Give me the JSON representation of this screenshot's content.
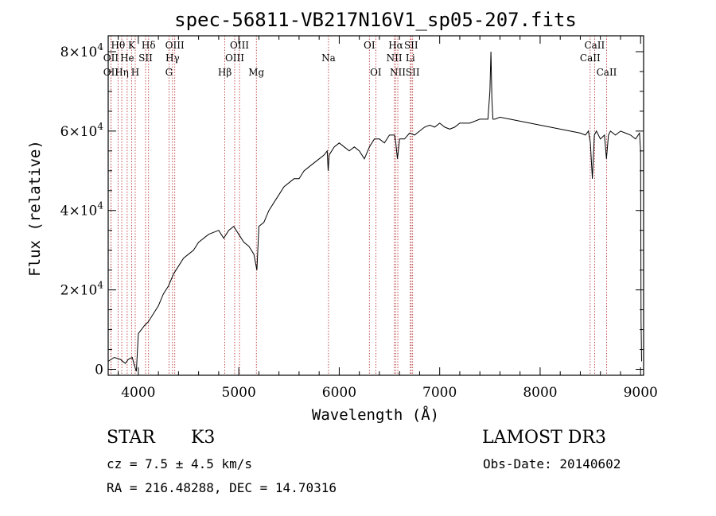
{
  "chart_data": {
    "type": "line",
    "title": "spec-56811-VB217N16V1_sp05-207.fits",
    "xlabel": "Wavelength (Å)",
    "ylabel": "Flux (relative)",
    "xlim": [
      3700,
      9030
    ],
    "ylim": [
      -1500,
      84000
    ],
    "x_ticks": [
      4000,
      5000,
      6000,
      7000,
      8000,
      9000
    ],
    "x_tick_labels": [
      "4000",
      "5000",
      "6000",
      "7000",
      "8000",
      "9000"
    ],
    "y_ticks": [
      0,
      20000,
      40000,
      60000,
      80000
    ],
    "y_tick_labels": [
      {
        "mantissa": "0",
        "exp": ""
      },
      {
        "mantissa": "2×10",
        "exp": "4"
      },
      {
        "mantissa": "4×10",
        "exp": "4"
      },
      {
        "mantissa": "6×10",
        "exp": "4"
      },
      {
        "mantissa": "8×10",
        "exp": "4"
      }
    ],
    "series": [
      {
        "name": "flux",
        "color": "#000000",
        "x": [
          3700,
          3760,
          3820,
          3870,
          3900,
          3940,
          3960,
          3980,
          4000,
          4030,
          4060,
          4100,
          4150,
          4200,
          4250,
          4300,
          4350,
          4400,
          4450,
          4500,
          4550,
          4600,
          4650,
          4700,
          4750,
          4800,
          4850,
          4900,
          4950,
          5000,
          5050,
          5100,
          5150,
          5180,
          5200,
          5250,
          5300,
          5350,
          5400,
          5450,
          5500,
          5550,
          5600,
          5650,
          5700,
          5750,
          5800,
          5850,
          5880,
          5890,
          5900,
          5950,
          6000,
          6050,
          6100,
          6150,
          6200,
          6250,
          6300,
          6350,
          6400,
          6450,
          6500,
          6550,
          6563,
          6580,
          6600,
          6650,
          6700,
          6750,
          6800,
          6850,
          6900,
          6950,
          7000,
          7050,
          7100,
          7150,
          7200,
          7300,
          7400,
          7480,
          7500,
          7510,
          7520,
          7530,
          7550,
          7600,
          7700,
          7800,
          7900,
          8000,
          8100,
          8200,
          8300,
          8400,
          8450,
          8480,
          8500,
          8520,
          8540,
          8560,
          8600,
          8640,
          8660,
          8680,
          8700,
          8750,
          8800,
          8850,
          8900,
          8950,
          8990,
          9000,
          9005,
          9010
        ],
        "y": [
          2000,
          3000,
          2500,
          1500,
          2500,
          3000,
          1000,
          -500,
          9000,
          10000,
          11000,
          12000,
          14000,
          16000,
          19000,
          21000,
          24000,
          26000,
          28000,
          29000,
          30000,
          32000,
          33000,
          34000,
          34500,
          35000,
          33000,
          35000,
          36000,
          34000,
          32000,
          31000,
          29000,
          25000,
          36000,
          37000,
          40000,
          42000,
          44000,
          46000,
          47000,
          48000,
          48000,
          50000,
          51000,
          52000,
          53000,
          54000,
          55000,
          50000,
          54000,
          56000,
          57000,
          56000,
          55000,
          56000,
          55000,
          53000,
          56000,
          58000,
          58000,
          57000,
          59000,
          59000,
          57000,
          53000,
          58000,
          58000,
          59500,
          59000,
          60000,
          61000,
          61500,
          61000,
          62000,
          61000,
          60500,
          61000,
          62000,
          62000,
          63000,
          63000,
          70000,
          80000,
          68000,
          63000,
          63000,
          63500,
          63000,
          62500,
          62000,
          61500,
          61000,
          60500,
          60000,
          59500,
          59000,
          60000,
          57000,
          48000,
          59000,
          60000,
          58000,
          59000,
          53000,
          59000,
          60000,
          59000,
          60000,
          59500,
          59000,
          58000,
          59500,
          55000,
          12000,
          2000
        ]
      }
    ],
    "spectral_lines": [
      {
        "label": "Hθ",
        "x": 3798,
        "row": 1
      },
      {
        "label": "OII",
        "x": 3727,
        "row": 2
      },
      {
        "label": "OII",
        "x": 3727,
        "row": 3
      },
      {
        "label": "He",
        "x": 3889,
        "row": 2
      },
      {
        "label": "Hη",
        "x": 3835,
        "row": 3
      },
      {
        "label": "K",
        "x": 3934,
        "row": 1
      },
      {
        "label": "SII",
        "x": 4072,
        "row": 2
      },
      {
        "label": "H",
        "x": 3969,
        "row": 3
      },
      {
        "label": "Hδ",
        "x": 4102,
        "row": 1
      },
      {
        "label": "OIII",
        "x": 4363,
        "row": 1
      },
      {
        "label": "Hγ",
        "x": 4340,
        "row": 2
      },
      {
        "label": "G",
        "x": 4305,
        "row": 3
      },
      {
        "label": "Hβ",
        "x": 4861,
        "row": 3
      },
      {
        "label": "OIII",
        "x": 5007,
        "row": 1
      },
      {
        "label": "OIII",
        "x": 4959,
        "row": 2
      },
      {
        "label": "Mg",
        "x": 5175,
        "row": 3
      },
      {
        "label": "Na",
        "x": 5893,
        "row": 2
      },
      {
        "label": "OI",
        "x": 6300,
        "row": 1
      },
      {
        "label": "OI",
        "x": 6364,
        "row": 3
      },
      {
        "label": "Hα",
        "x": 6563,
        "row": 1
      },
      {
        "label": "NII",
        "x": 6548,
        "row": 2
      },
      {
        "label": "NII",
        "x": 6583,
        "row": 3
      },
      {
        "label": "SII",
        "x": 6716,
        "row": 1
      },
      {
        "label": "Li",
        "x": 6708,
        "row": 2
      },
      {
        "label": "SII",
        "x": 6731,
        "row": 3
      },
      {
        "label": "CaII",
        "x": 8542,
        "row": 1
      },
      {
        "label": "CaII",
        "x": 8498,
        "row": 2
      },
      {
        "label": "CaII",
        "x": 8662,
        "row": 3
      }
    ]
  },
  "info": {
    "object_class": "STAR",
    "subclass": "K3",
    "survey": "LAMOST DR3",
    "redshift": "cz = 7.5 ± 4.5 km/s",
    "obs_date": "Obs-Date: 20140602",
    "coords": "RA = 216.48288, DEC =  14.70316"
  }
}
